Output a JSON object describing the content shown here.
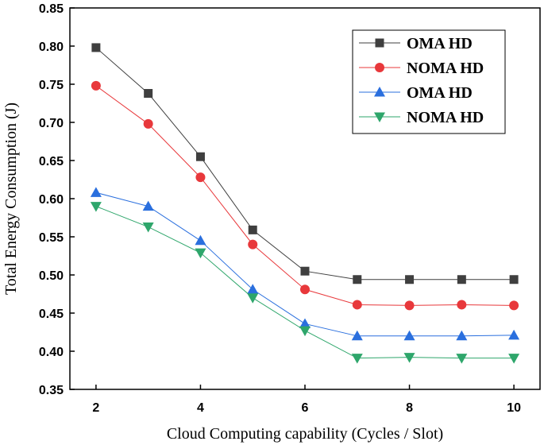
{
  "chart_data": {
    "type": "line",
    "title": "",
    "xlabel": "Cloud Computing capability (Cycles / Slot)",
    "ylabel": "Total Energy Consumption (J)",
    "x": [
      2,
      3,
      4,
      5,
      6,
      7,
      8,
      9,
      10
    ],
    "xlim": [
      1.5,
      10.5
    ],
    "ylim": [
      0.35,
      0.85
    ],
    "xticks": [
      "2",
      "4",
      "6",
      "8",
      "10"
    ],
    "yticks": [
      "0.35",
      "0.40",
      "0.45",
      "0.50",
      "0.55",
      "0.60",
      "0.65",
      "0.70",
      "0.75",
      "0.80",
      "0.85"
    ],
    "grid": false,
    "legend_position": "top-right",
    "series": [
      {
        "name": "OMA HD",
        "marker": "square",
        "color": "#3f3f3f",
        "values": [
          0.798,
          0.738,
          0.655,
          0.559,
          0.505,
          0.494,
          0.494,
          0.494,
          0.494
        ]
      },
      {
        "name": "NOMA HD",
        "marker": "circle",
        "color": "#e8383b",
        "values": [
          0.748,
          0.698,
          0.628,
          0.54,
          0.481,
          0.461,
          0.46,
          0.461,
          0.46
        ]
      },
      {
        "name": "OMA HD",
        "marker": "triangle-up",
        "color": "#2a6fde",
        "values": [
          0.608,
          0.59,
          0.545,
          0.481,
          0.436,
          0.42,
          0.42,
          0.42,
          0.421
        ]
      },
      {
        "name": "NOMA HD",
        "marker": "triangle-down",
        "color": "#2ea66b",
        "values": [
          0.59,
          0.563,
          0.529,
          0.47,
          0.427,
          0.391,
          0.392,
          0.391,
          0.391
        ]
      }
    ]
  }
}
